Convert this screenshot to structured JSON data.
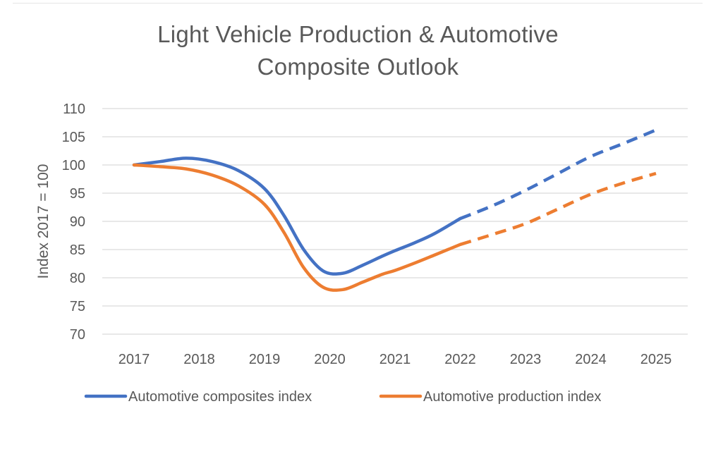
{
  "chart_data": {
    "type": "line",
    "title": "Light Vehicle Production & Automotive Composite Outlook",
    "title_lines": [
      "Light Vehicle Production & Automotive",
      "Composite Outlook"
    ],
    "xlabel": "",
    "ylabel": "Index 2017 = 100",
    "categories": [
      "2017",
      "2018",
      "2019",
      "2020",
      "2021",
      "2022",
      "2023",
      "2024",
      "2025"
    ],
    "ylim": [
      70,
      110
    ],
    "yticks": [
      70,
      75,
      80,
      85,
      90,
      95,
      100,
      105,
      110
    ],
    "grid": true,
    "forecast_start": "2022",
    "legend_position": "bottom",
    "series": [
      {
        "name": "Automotive composites index",
        "color": "#4472C4",
        "x": [
          2017,
          2017.4,
          2017.8,
          2018.2,
          2018.6,
          2019.0,
          2019.3,
          2019.6,
          2019.9,
          2020.2,
          2020.5,
          2020.8,
          2021.0,
          2021.3,
          2021.6,
          2022.0,
          2022.5,
          2023.0,
          2023.5,
          2024.0,
          2024.5,
          2025.0
        ],
        "values": [
          100,
          100.6,
          101.2,
          100.6,
          99.0,
          95.8,
          91.0,
          85.0,
          81.2,
          80.8,
          82.2,
          83.8,
          84.8,
          86.2,
          87.8,
          90.5,
          92.8,
          95.5,
          98.5,
          101.5,
          103.8,
          106.2
        ]
      },
      {
        "name": "Automotive production index",
        "color": "#ED7D31",
        "x": [
          2017,
          2017.4,
          2017.8,
          2018.2,
          2018.6,
          2019.0,
          2019.3,
          2019.6,
          2019.9,
          2020.2,
          2020.5,
          2020.8,
          2021.0,
          2021.3,
          2021.6,
          2022.0,
          2022.5,
          2023.0,
          2023.5,
          2024.0,
          2024.5,
          2025.0
        ],
        "values": [
          100,
          99.7,
          99.3,
          98.2,
          96.3,
          93.0,
          88.0,
          81.8,
          78.3,
          77.9,
          79.2,
          80.6,
          81.3,
          82.6,
          84.0,
          85.9,
          87.7,
          89.6,
          92.2,
          94.8,
          96.8,
          98.5
        ]
      }
    ]
  }
}
